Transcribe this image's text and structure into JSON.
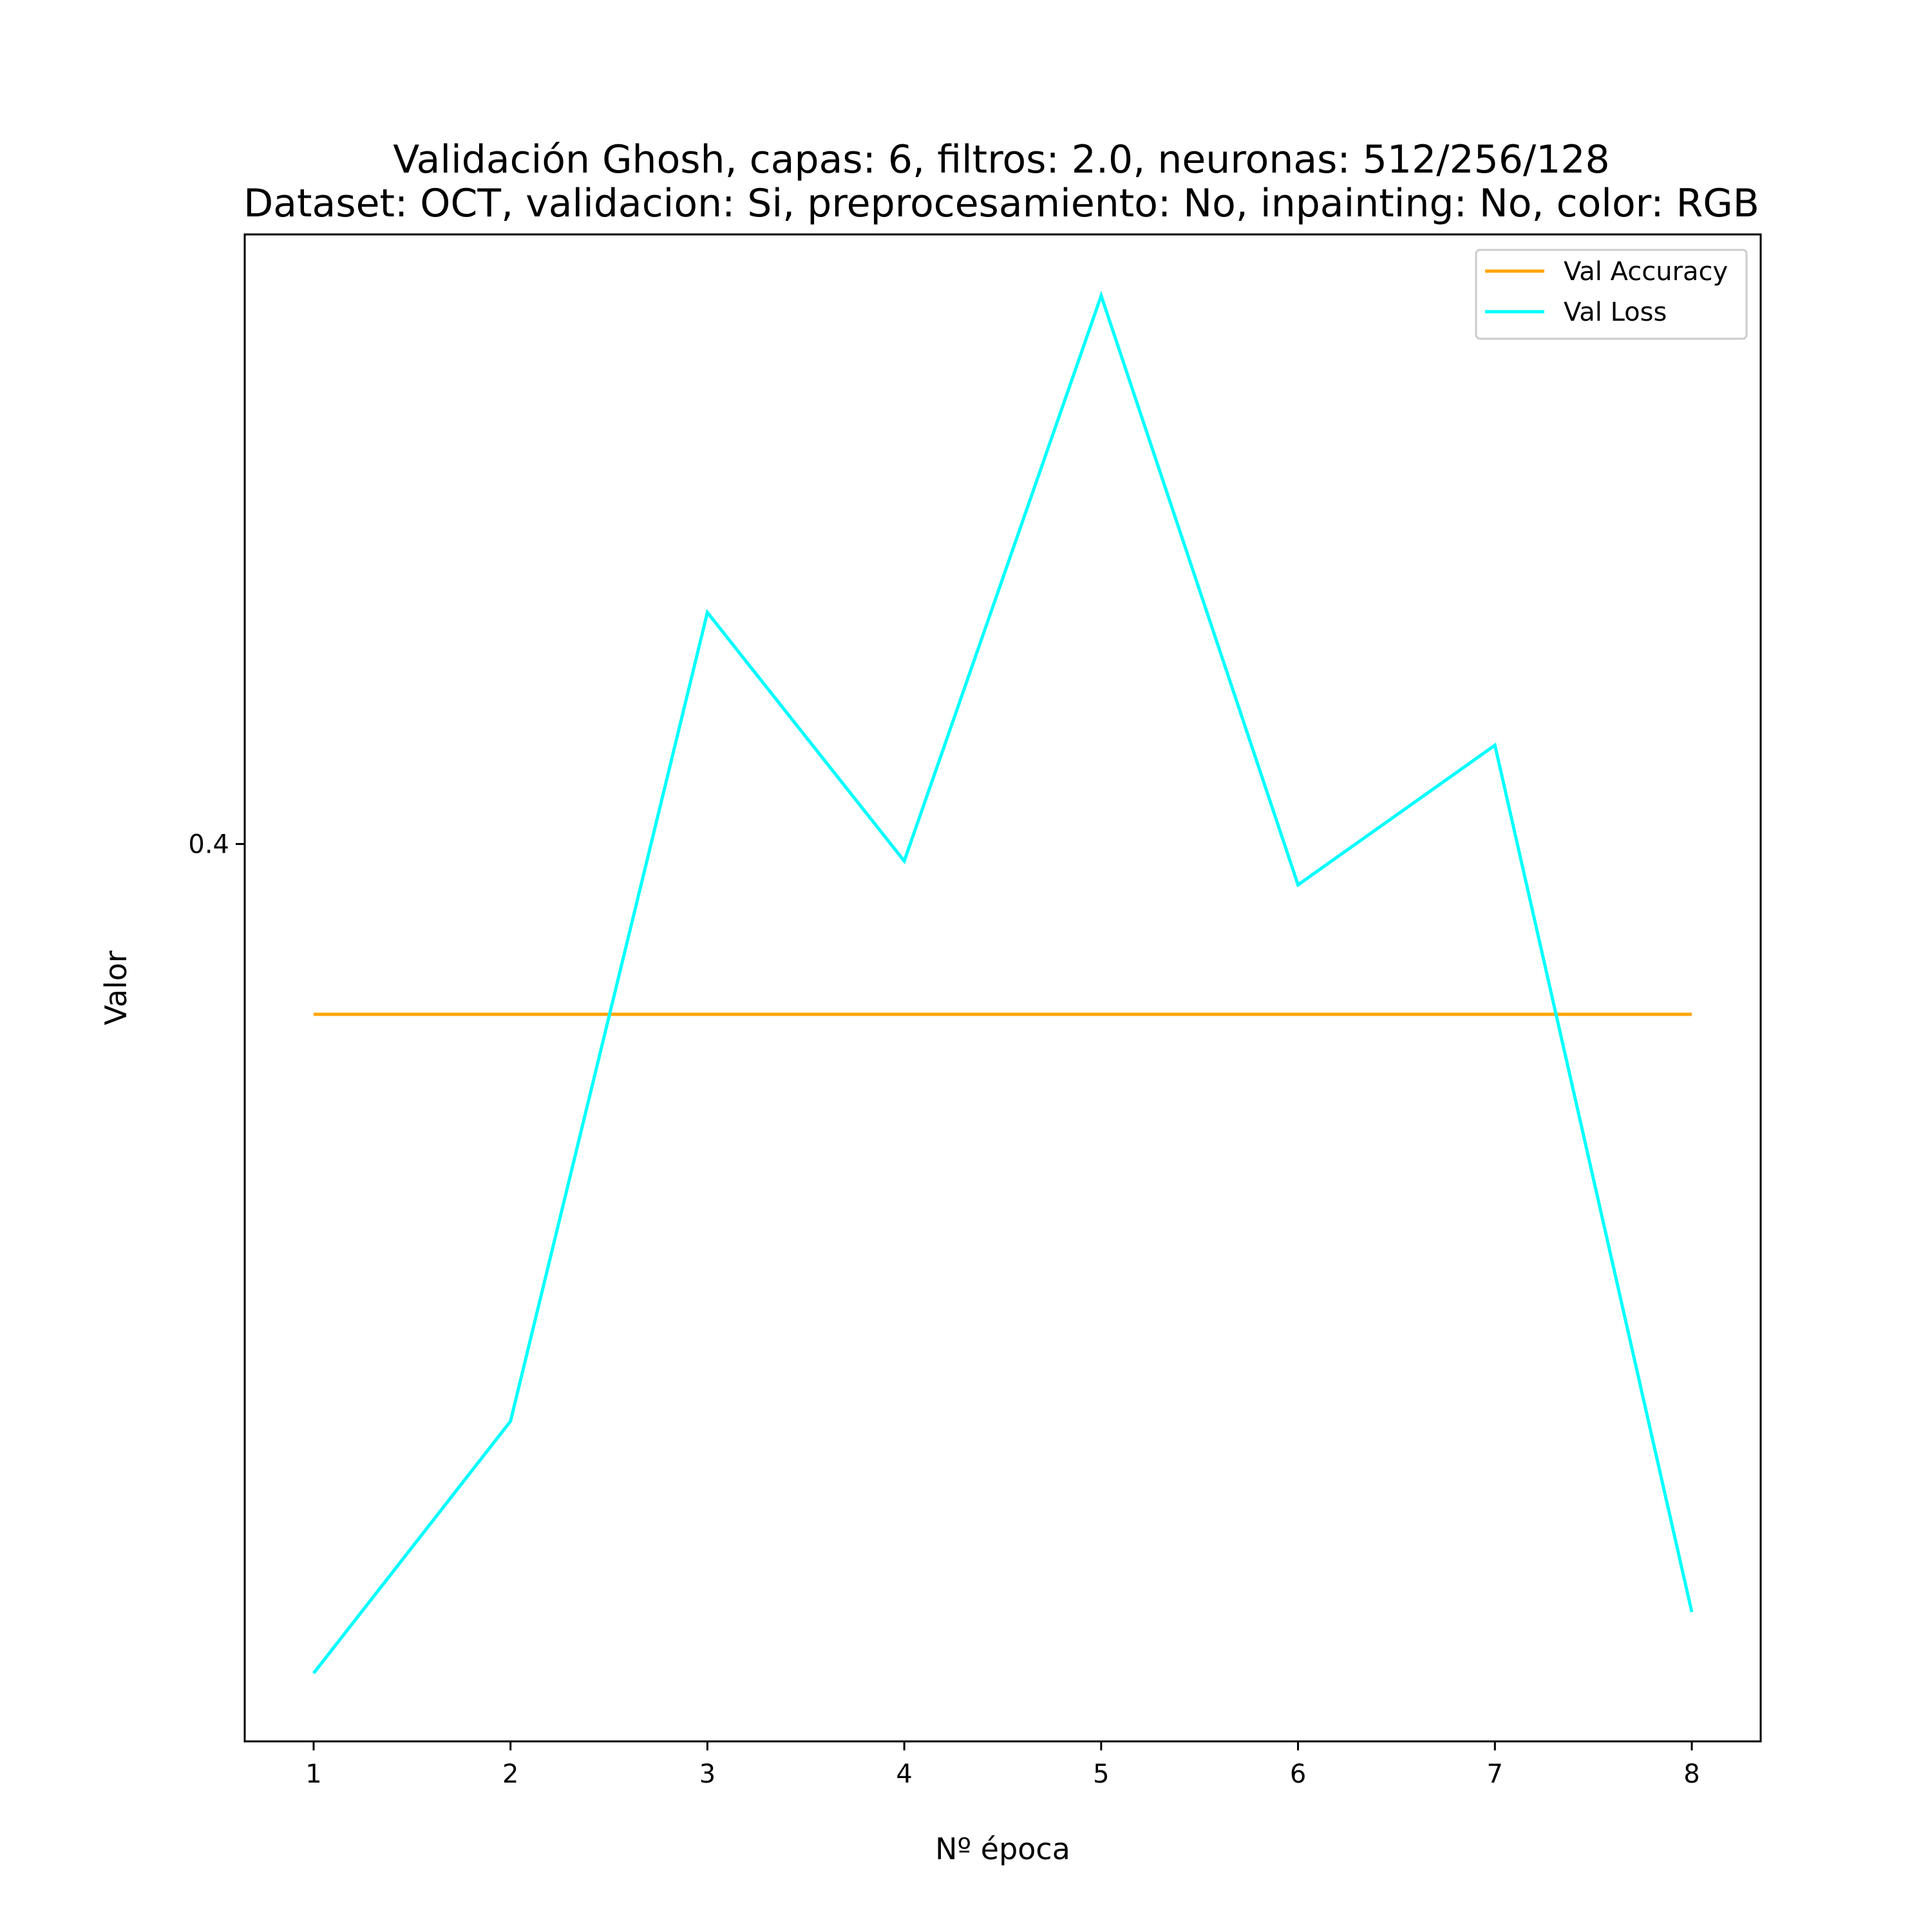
{
  "chart_data": {
    "type": "line",
    "title": "Validación Ghosh, capas: 6, filtros: 2.0, neuronas: 512/256/128",
    "subtitle": "Dataset: OCT, validacion: Si, preprocesamiento: No, inpainting: No, color: RGB",
    "xlabel": "Nº época",
    "ylabel": "Valor",
    "x": [
      1,
      2,
      3,
      4,
      5,
      6,
      7,
      8
    ],
    "x_ticks": [
      "1",
      "2",
      "3",
      "4",
      "5",
      "6",
      "7",
      "8"
    ],
    "y_ticks": [
      {
        "value": 0.4,
        "label": "0.4"
      }
    ],
    "xlim": [
      0.65,
      8.35
    ],
    "ylim": [
      0.3473,
      0.4358
    ],
    "grid": false,
    "legend_position": "upper right",
    "series": [
      {
        "name": "Val Accuracy",
        "color": "#ffa500",
        "values": [
          0.39,
          0.39,
          0.39,
          0.39,
          0.39,
          0.39,
          0.39,
          0.39
        ]
      },
      {
        "name": "Val Loss",
        "color": "#00ffff",
        "values": [
          0.3513,
          0.3661,
          0.4136,
          0.399,
          0.4322,
          0.3976,
          0.4058,
          0.3549
        ]
      }
    ]
  }
}
